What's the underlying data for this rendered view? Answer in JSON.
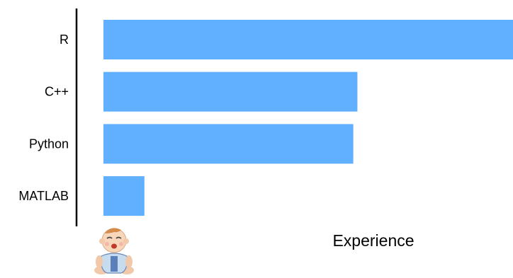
{
  "chart_data": {
    "type": "bar",
    "orientation": "horizontal",
    "categories": [
      "R",
      "C++",
      "Python",
      "MATLAB"
    ],
    "values": [
      100,
      62,
      61,
      10
    ],
    "xlabel": "Experience",
    "ylabel": "",
    "xlim": [
      0,
      100
    ],
    "grid": false,
    "legend": "none",
    "colors": {
      "bar": "#61afff",
      "axis": "#000000"
    },
    "icons": {
      "axis_start": "baby-icon"
    }
  }
}
